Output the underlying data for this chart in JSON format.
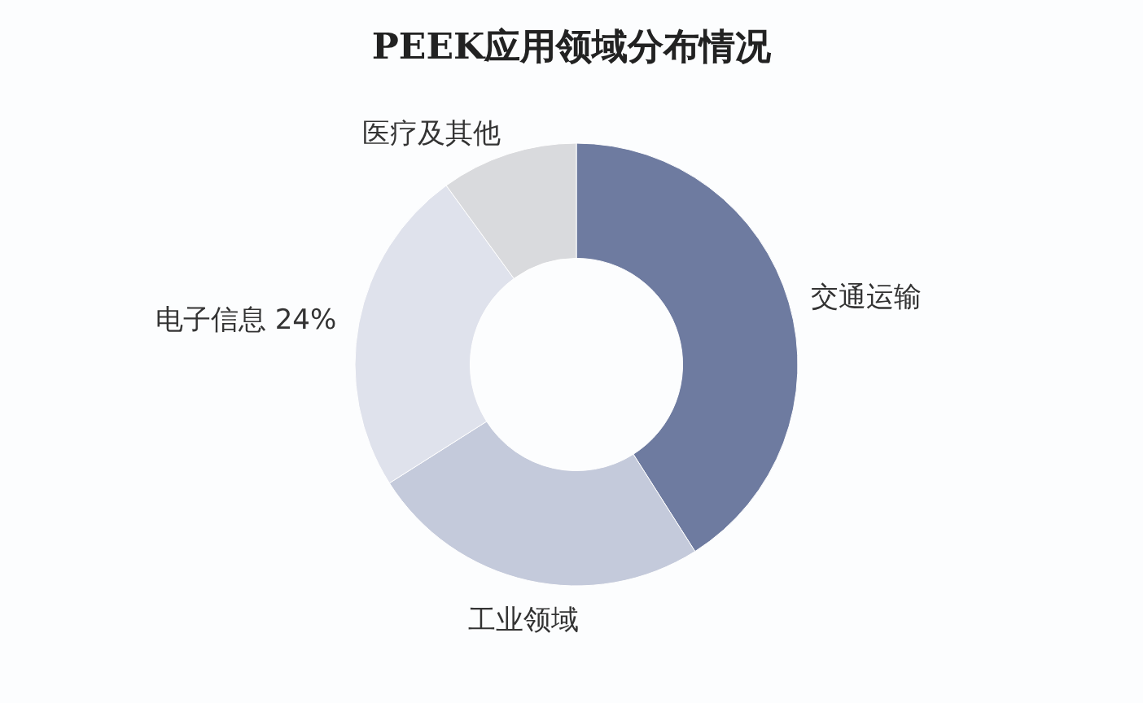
{
  "chart_data": {
    "type": "donut",
    "title": "PEEK应用领域分布情况",
    "categories": [
      "交通运输",
      "工业领域",
      "电子信息",
      "医疗及其他"
    ],
    "values": [
      41,
      25,
      24,
      10
    ],
    "colors": [
      "#6e7ba0",
      "#c4cadb",
      "#dfe2ec",
      "#d9dadd"
    ],
    "value_labels": [
      null,
      null,
      "24%",
      null
    ]
  }
}
